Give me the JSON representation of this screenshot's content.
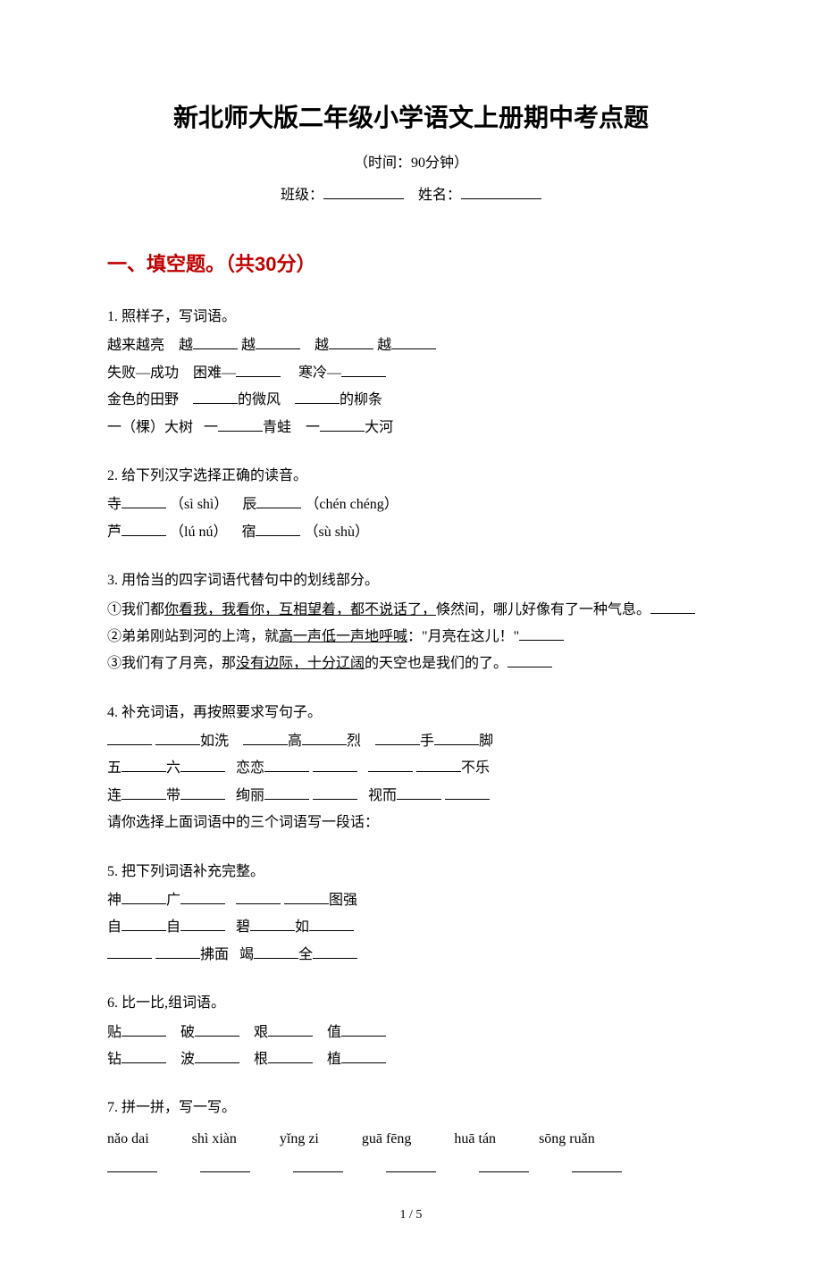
{
  "colors": {
    "text": "#000000",
    "accent": "#bf0000",
    "background": "#ffffff"
  },
  "fonts": {
    "title_family": "SimHei",
    "body_family": "SimSun",
    "title_size": 28,
    "section_size": 22,
    "body_size": 16
  },
  "header": {
    "title": "新北师大版二年级小学语文上册期中考点题",
    "time": "（时间：90分钟）",
    "class_label": "班级：",
    "name_label": "姓名："
  },
  "section1": {
    "heading": "一、填空题。（共30分）"
  },
  "q1": {
    "title": "1. 照样子，写词语。",
    "l1a": "越来越亮",
    "l1b": "越",
    "l1c": "越",
    "l1d": "越",
    "l1e": "越",
    "l2a": "失败—成功",
    "l2b": "困难—",
    "l2c": "寒冷—",
    "l3a": "金色的田野",
    "l3b": "的微风",
    "l3c": "的柳条",
    "l4a": "一（棵）大树",
    "l4b": "一",
    "l4c": "青蛙",
    "l4d": "一",
    "l4e": "大河"
  },
  "q2": {
    "title": "2. 给下列汉字选择正确的读音。",
    "c1": "寺",
    "p1": "（sì  shì）",
    "c2": "辰",
    "p2": "（chén  chéng）",
    "c3": "芦",
    "p3": "（lú  nú）",
    "c4": "宿",
    "p4": "（sù  shù）"
  },
  "q3": {
    "title": "3. 用恰当的四字词语代替句中的划线部分。",
    "l1a": "①我们都",
    "l1u": "你看我，我看你，互相望着，都不说话了，",
    "l1b": "倏然间，哪儿好像有了一种气息。",
    "l2a": "②弟弟刚站到河的上湾，就",
    "l2u": "高一声低一声地呼喊",
    "l2b": "：\"月亮在这儿！\"",
    "l3a": "③我们有了月亮，那",
    "l3u": "没有边际，十分辽阔",
    "l3b": "的天空也是我们的了。"
  },
  "q4": {
    "title": "4. 补充词语，再按照要求写句子。",
    "w1": "如洗",
    "w2": "高",
    "w3": "烈",
    "w4": "手",
    "w5": "脚",
    "w6": "五",
    "w7": "六",
    "w8": "恋恋",
    "w9": "不乐",
    "w10": "连",
    "w11": "带",
    "w12": "绚丽",
    "w13": "视而",
    "tail": "请你选择上面词语中的三个词语写一段话："
  },
  "q5": {
    "title": "5. 把下列词语补充完整。",
    "w1": "神",
    "w2": "广",
    "w3": "图强",
    "w4": "自",
    "w5": "自",
    "w6": "碧",
    "w7": "如",
    "w8": "拂面",
    "w9": "竭",
    "w10": "全"
  },
  "q6": {
    "title": "6. 比一比,组词语。",
    "c1": "贴",
    "c2": "破",
    "c3": "艰",
    "c4": "值",
    "c5": "钻",
    "c6": "波",
    "c7": "根",
    "c8": "植"
  },
  "q7": {
    "title": "7. 拼一拼，写一写。",
    "p1": "nǎo dai",
    "p2": "shì xiàn",
    "p3": "yǐng zi",
    "p4": "guā fēng",
    "p5": "huā tán",
    "p6": "sōng ruǎn"
  },
  "footer": {
    "page": "1 / 5"
  }
}
